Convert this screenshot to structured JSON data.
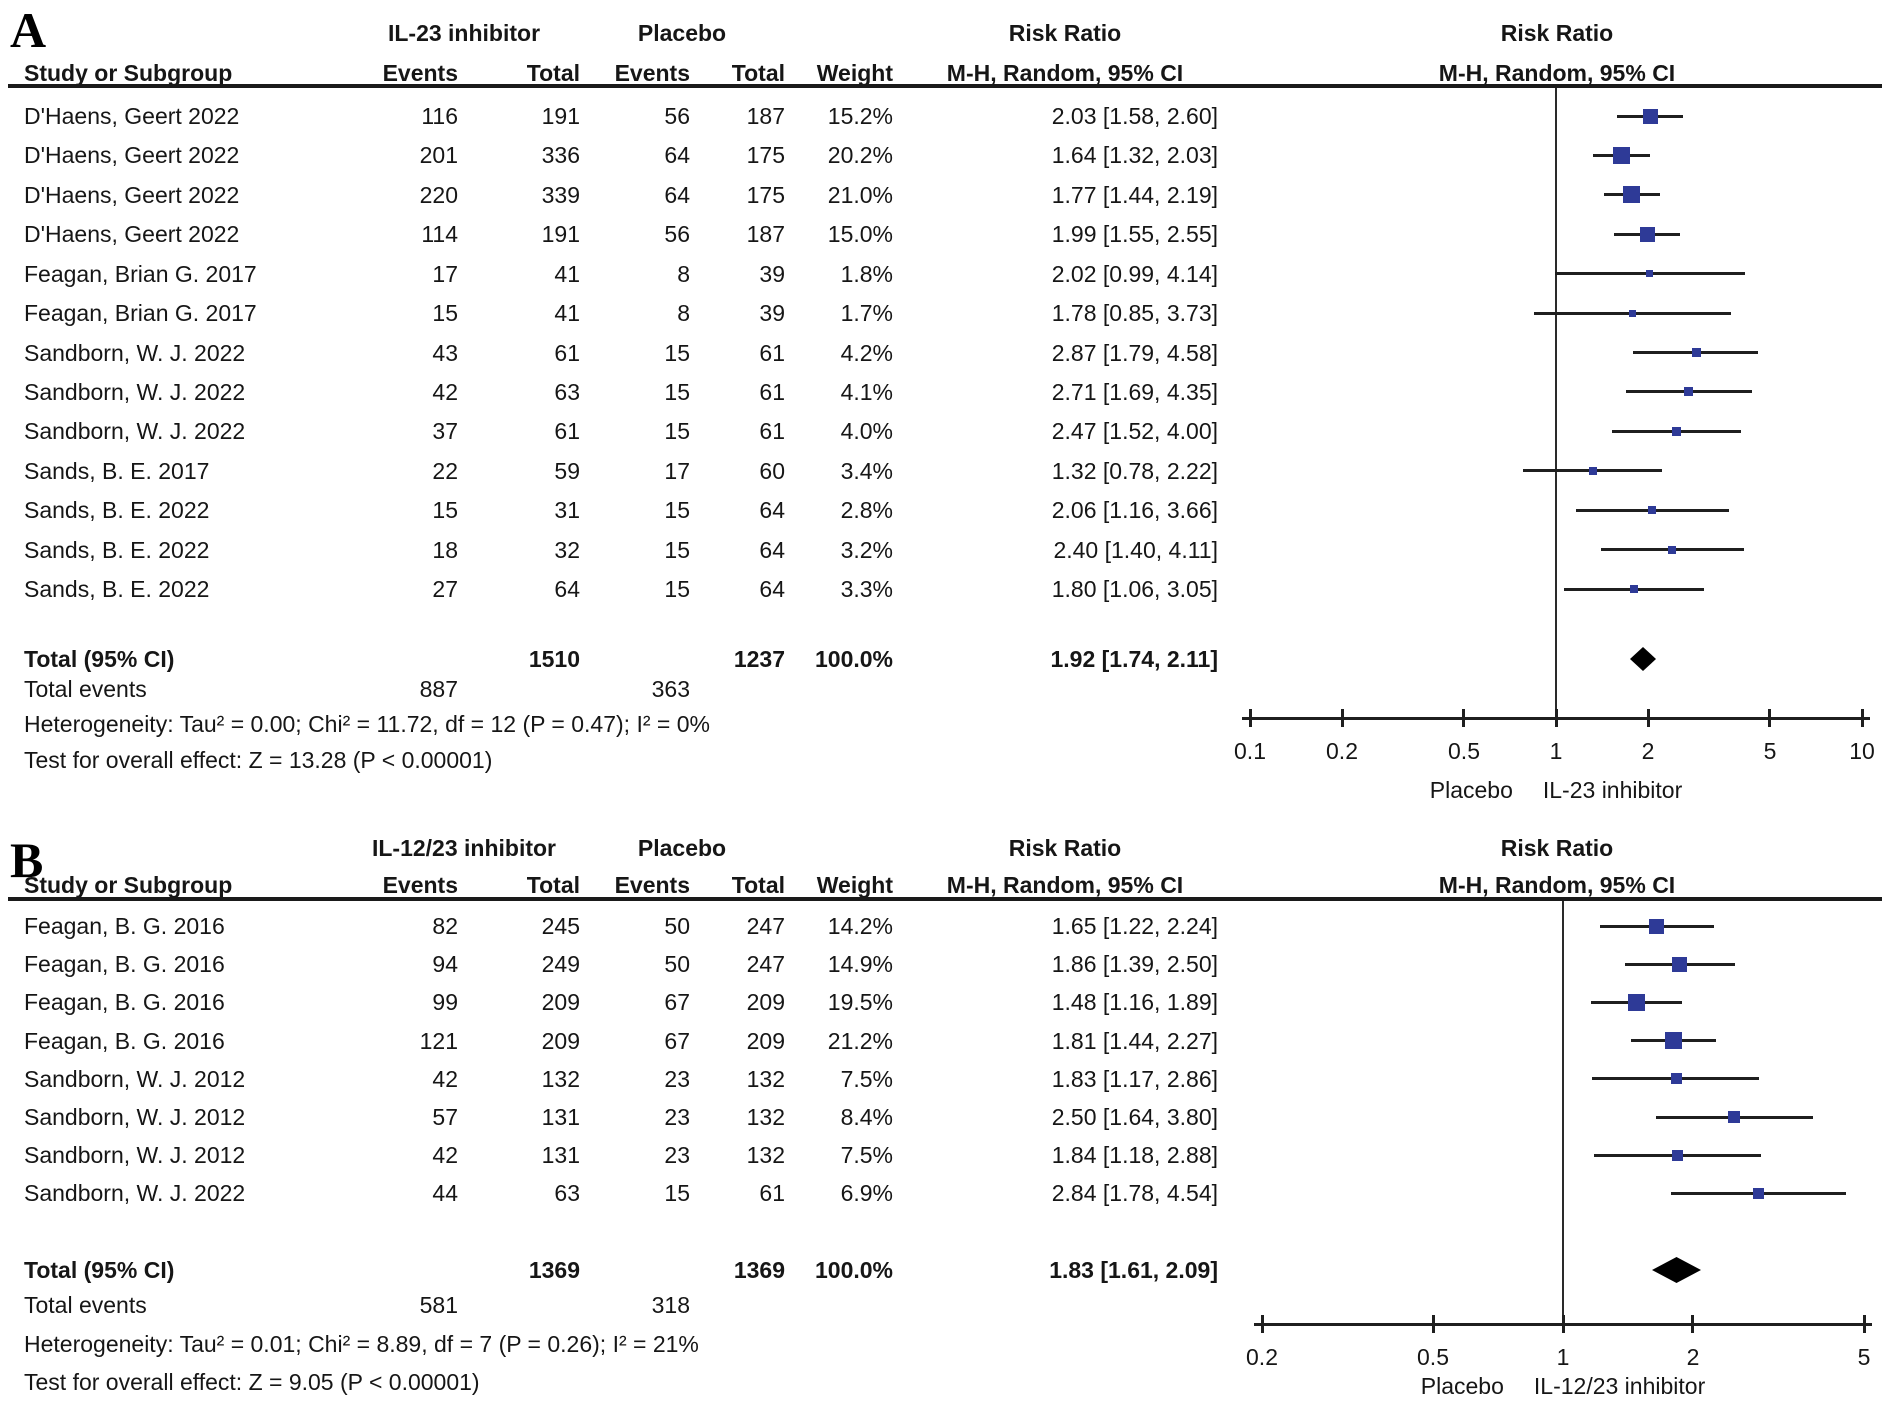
{
  "figure": {
    "marker_color": "#2e3a97",
    "ci_line_color": "#1f1f1f",
    "text_color": "#161616"
  },
  "chart_data": [
    {
      "type": "forest",
      "panel_label": "A",
      "treatment_label": "IL-23 inhibitor",
      "control_label": "Placebo",
      "headers": {
        "study": "Study or Subgroup",
        "events": "Events",
        "total": "Total",
        "weight": "Weight",
        "risk_ratio": "Risk Ratio",
        "mh": "M-H, Random, 95% CI"
      },
      "studies": [
        {
          "name": "D'Haens, Geert 2022",
          "t_events": 116,
          "t_total": 191,
          "c_events": 56,
          "c_total": 187,
          "weight_pct": 15.2,
          "weight_text": "15.2%",
          "rr": 2.03,
          "ci_low": 1.58,
          "ci_high": 2.6,
          "rr_text": "2.03 [1.58, 2.60]"
        },
        {
          "name": "D'Haens, Geert 2022",
          "t_events": 201,
          "t_total": 336,
          "c_events": 64,
          "c_total": 175,
          "weight_pct": 20.2,
          "weight_text": "20.2%",
          "rr": 1.64,
          "ci_low": 1.32,
          "ci_high": 2.03,
          "rr_text": "1.64 [1.32, 2.03]"
        },
        {
          "name": "D'Haens, Geert 2022",
          "t_events": 220,
          "t_total": 339,
          "c_events": 64,
          "c_total": 175,
          "weight_pct": 21.0,
          "weight_text": "21.0%",
          "rr": 1.77,
          "ci_low": 1.44,
          "ci_high": 2.19,
          "rr_text": "1.77 [1.44, 2.19]"
        },
        {
          "name": "D'Haens, Geert 2022",
          "t_events": 114,
          "t_total": 191,
          "c_events": 56,
          "c_total": 187,
          "weight_pct": 15.0,
          "weight_text": "15.0%",
          "rr": 1.99,
          "ci_low": 1.55,
          "ci_high": 2.55,
          "rr_text": "1.99 [1.55, 2.55]"
        },
        {
          "name": "Feagan, Brian G. 2017",
          "t_events": 17,
          "t_total": 41,
          "c_events": 8,
          "c_total": 39,
          "weight_pct": 1.8,
          "weight_text": "1.8%",
          "rr": 2.02,
          "ci_low": 0.99,
          "ci_high": 4.14,
          "rr_text": "2.02 [0.99, 4.14]"
        },
        {
          "name": "Feagan, Brian G. 2017",
          "t_events": 15,
          "t_total": 41,
          "c_events": 8,
          "c_total": 39,
          "weight_pct": 1.7,
          "weight_text": "1.7%",
          "rr": 1.78,
          "ci_low": 0.85,
          "ci_high": 3.73,
          "rr_text": "1.78 [0.85, 3.73]"
        },
        {
          "name": "Sandborn, W. J. 2022",
          "t_events": 43,
          "t_total": 61,
          "c_events": 15,
          "c_total": 61,
          "weight_pct": 4.2,
          "weight_text": "4.2%",
          "rr": 2.87,
          "ci_low": 1.79,
          "ci_high": 4.58,
          "rr_text": "2.87 [1.79, 4.58]"
        },
        {
          "name": "Sandborn, W. J. 2022",
          "t_events": 42,
          "t_total": 63,
          "c_events": 15,
          "c_total": 61,
          "weight_pct": 4.1,
          "weight_text": "4.1%",
          "rr": 2.71,
          "ci_low": 1.69,
          "ci_high": 4.35,
          "rr_text": "2.71 [1.69, 4.35]"
        },
        {
          "name": "Sandborn, W. J. 2022",
          "t_events": 37,
          "t_total": 61,
          "c_events": 15,
          "c_total": 61,
          "weight_pct": 4.0,
          "weight_text": "4.0%",
          "rr": 2.47,
          "ci_low": 1.52,
          "ci_high": 4.0,
          "rr_text": "2.47 [1.52, 4.00]"
        },
        {
          "name": "Sands, B. E. 2017",
          "t_events": 22,
          "t_total": 59,
          "c_events": 17,
          "c_total": 60,
          "weight_pct": 3.4,
          "weight_text": "3.4%",
          "rr": 1.32,
          "ci_low": 0.78,
          "ci_high": 2.22,
          "rr_text": "1.32 [0.78, 2.22]"
        },
        {
          "name": "Sands, B. E. 2022",
          "t_events": 15,
          "t_total": 31,
          "c_events": 15,
          "c_total": 64,
          "weight_pct": 2.8,
          "weight_text": "2.8%",
          "rr": 2.06,
          "ci_low": 1.16,
          "ci_high": 3.66,
          "rr_text": "2.06 [1.16, 3.66]"
        },
        {
          "name": "Sands, B. E. 2022",
          "t_events": 18,
          "t_total": 32,
          "c_events": 15,
          "c_total": 64,
          "weight_pct": 3.2,
          "weight_text": "3.2%",
          "rr": 2.4,
          "ci_low": 1.4,
          "ci_high": 4.11,
          "rr_text": "2.40 [1.40, 4.11]"
        },
        {
          "name": "Sands, B. E. 2022",
          "t_events": 27,
          "t_total": 64,
          "c_events": 15,
          "c_total": 64,
          "weight_pct": 3.3,
          "weight_text": "3.3%",
          "rr": 1.8,
          "ci_low": 1.06,
          "ci_high": 3.05,
          "rr_text": "1.80 [1.06, 3.05]"
        }
      ],
      "total": {
        "label": "Total (95% CI)",
        "t_total": 1510,
        "c_total": 1237,
        "weight_text": "100.0%",
        "rr": 1.92,
        "ci_low": 1.74,
        "ci_high": 2.11,
        "rr_text": "1.92 [1.74, 2.11]"
      },
      "total_events": {
        "label": "Total events",
        "treatment": 887,
        "control": 363
      },
      "heterogeneity": "Heterogeneity: Tau² = 0.00; Chi² = 11.72, df = 12 (P = 0.47); I² = 0%",
      "overall_effect": "Test for overall effect: Z = 13.28 (P < 0.00001)",
      "axis": {
        "scale": "log",
        "min": 0.1,
        "max": 10,
        "tick_values": [
          0.1,
          0.2,
          0.5,
          1,
          2,
          5,
          10
        ],
        "ticks": [
          "0.1",
          "0.2",
          "0.5",
          "1",
          "2",
          "5",
          "10"
        ],
        "left_label": "Placebo",
        "right_label": "IL-23 inhibitor"
      }
    },
    {
      "type": "forest",
      "panel_label": "B",
      "treatment_label": "IL-12/23 inhibitor",
      "control_label": "Placebo",
      "headers": {
        "study": "Study or Subgroup",
        "events": "Events",
        "total": "Total",
        "weight": "Weight",
        "risk_ratio": "Risk Ratio",
        "mh": "M-H, Random, 95% CI"
      },
      "studies": [
        {
          "name": "Feagan, B. G. 2016",
          "t_events": 82,
          "t_total": 245,
          "c_events": 50,
          "c_total": 247,
          "weight_pct": 14.2,
          "weight_text": "14.2%",
          "rr": 1.65,
          "ci_low": 1.22,
          "ci_high": 2.24,
          "rr_text": "1.65 [1.22, 2.24]"
        },
        {
          "name": "Feagan, B. G. 2016",
          "t_events": 94,
          "t_total": 249,
          "c_events": 50,
          "c_total": 247,
          "weight_pct": 14.9,
          "weight_text": "14.9%",
          "rr": 1.86,
          "ci_low": 1.39,
          "ci_high": 2.5,
          "rr_text": "1.86 [1.39, 2.50]"
        },
        {
          "name": "Feagan, B. G. 2016",
          "t_events": 99,
          "t_total": 209,
          "c_events": 67,
          "c_total": 209,
          "weight_pct": 19.5,
          "weight_text": "19.5%",
          "rr": 1.48,
          "ci_low": 1.16,
          "ci_high": 1.89,
          "rr_text": "1.48 [1.16, 1.89]"
        },
        {
          "name": "Feagan, B. G. 2016",
          "t_events": 121,
          "t_total": 209,
          "c_events": 67,
          "c_total": 209,
          "weight_pct": 21.2,
          "weight_text": "21.2%",
          "rr": 1.81,
          "ci_low": 1.44,
          "ci_high": 2.27,
          "rr_text": "1.81 [1.44, 2.27]"
        },
        {
          "name": "Sandborn, W. J. 2012",
          "t_events": 42,
          "t_total": 132,
          "c_events": 23,
          "c_total": 132,
          "weight_pct": 7.5,
          "weight_text": "7.5%",
          "rr": 1.83,
          "ci_low": 1.17,
          "ci_high": 2.86,
          "rr_text": "1.83 [1.17, 2.86]"
        },
        {
          "name": "Sandborn, W. J. 2012",
          "t_events": 57,
          "t_total": 131,
          "c_events": 23,
          "c_total": 132,
          "weight_pct": 8.4,
          "weight_text": "8.4%",
          "rr": 2.5,
          "ci_low": 1.64,
          "ci_high": 3.8,
          "rr_text": "2.50 [1.64, 3.80]"
        },
        {
          "name": "Sandborn, W. J. 2012",
          "t_events": 42,
          "t_total": 131,
          "c_events": 23,
          "c_total": 132,
          "weight_pct": 7.5,
          "weight_text": "7.5%",
          "rr": 1.84,
          "ci_low": 1.18,
          "ci_high": 2.88,
          "rr_text": "1.84 [1.18, 2.88]"
        },
        {
          "name": "Sandborn, W. J. 2022",
          "t_events": 44,
          "t_total": 63,
          "c_events": 15,
          "c_total": 61,
          "weight_pct": 6.9,
          "weight_text": "6.9%",
          "rr": 2.84,
          "ci_low": 1.78,
          "ci_high": 4.54,
          "rr_text": "2.84 [1.78, 4.54]"
        }
      ],
      "total": {
        "label": "Total (95% CI)",
        "t_total": 1369,
        "c_total": 1369,
        "weight_text": "100.0%",
        "rr": 1.83,
        "ci_low": 1.61,
        "ci_high": 2.09,
        "rr_text": "1.83 [1.61, 2.09]"
      },
      "total_events": {
        "label": "Total events",
        "treatment": 581,
        "control": 318
      },
      "heterogeneity": "Heterogeneity: Tau² = 0.01; Chi² = 8.89, df = 7 (P = 0.26); I² = 21%",
      "overall_effect": "Test for overall effect: Z = 9.05 (P < 0.00001)",
      "axis": {
        "scale": "log",
        "min": 0.2,
        "max": 5,
        "tick_values": [
          0.2,
          0.5,
          1,
          2,
          5
        ],
        "ticks": [
          "0.2",
          "0.5",
          "1",
          "2",
          "5"
        ],
        "left_label": "Placebo",
        "right_label": "IL-12/23 inhibitor"
      }
    }
  ]
}
